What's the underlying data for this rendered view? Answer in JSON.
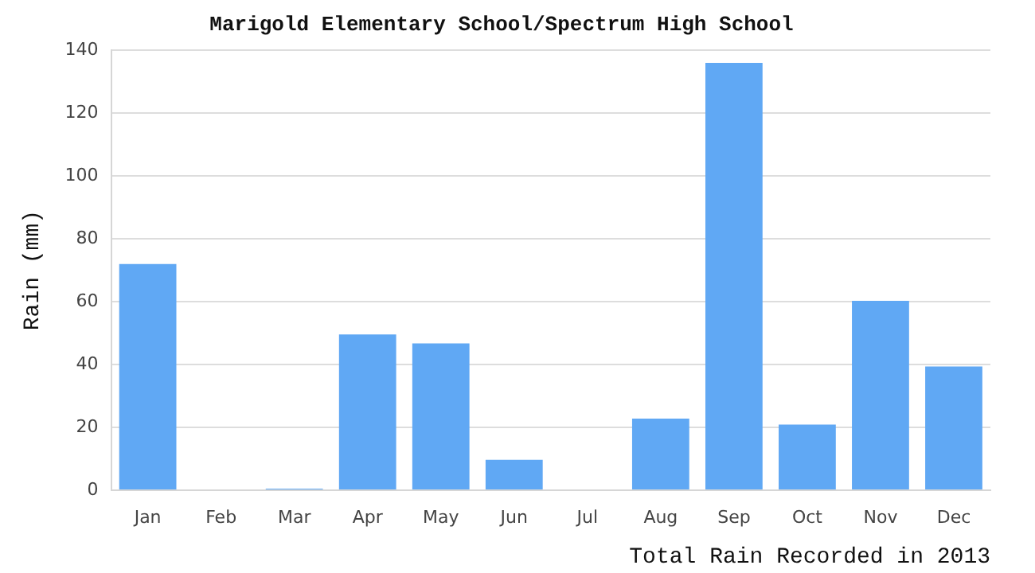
{
  "chart_data": {
    "type": "bar",
    "title": "Marigold Elementary School/Spectrum High School",
    "xlabel": "Total Rain Recorded in 2013",
    "ylabel": "Rain (mm)",
    "categories": [
      "Jan",
      "Feb",
      "Mar",
      "Apr",
      "May",
      "Jun",
      "Jul",
      "Aug",
      "Sep",
      "Oct",
      "Nov",
      "Dec"
    ],
    "values": [
      72,
      0,
      0.5,
      49.6,
      46.7,
      9.7,
      0,
      22.8,
      136,
      20.9,
      60.3,
      39.4
    ],
    "color": "#60a8f4",
    "ylim": [
      0,
      140
    ],
    "yticks": [
      0,
      20,
      40,
      60,
      80,
      100,
      120,
      140
    ],
    "grid": "y",
    "legend": false
  }
}
